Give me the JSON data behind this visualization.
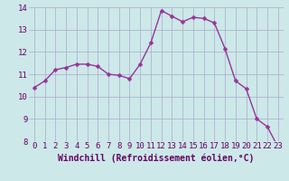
{
  "x": [
    0,
    1,
    2,
    3,
    4,
    5,
    6,
    7,
    8,
    9,
    10,
    11,
    12,
    13,
    14,
    15,
    16,
    17,
    18,
    19,
    20,
    21,
    22,
    23
  ],
  "y": [
    10.4,
    10.7,
    11.2,
    11.3,
    11.45,
    11.45,
    11.35,
    11.0,
    10.95,
    10.8,
    11.45,
    12.4,
    13.85,
    13.6,
    13.35,
    13.55,
    13.5,
    13.3,
    12.15,
    10.7,
    10.35,
    9.0,
    8.65,
    7.75
  ],
  "line_color": "#993399",
  "marker_color": "#993399",
  "bg_color": "#cce8e8",
  "grid_color": "#aaaacc",
  "xlabel": "Windchill (Refroidissement éolien,°C)",
  "ylim": [
    8,
    14
  ],
  "xlim": [
    -0.5,
    23.5
  ],
  "yticks": [
    8,
    9,
    10,
    11,
    12,
    13,
    14
  ],
  "xticks": [
    0,
    1,
    2,
    3,
    4,
    5,
    6,
    7,
    8,
    9,
    10,
    11,
    12,
    13,
    14,
    15,
    16,
    17,
    18,
    19,
    20,
    21,
    22,
    23
  ],
  "xlabel_fontsize": 7.0,
  "tick_fontsize": 6.5,
  "line_width": 1.0,
  "marker_size": 2.5
}
